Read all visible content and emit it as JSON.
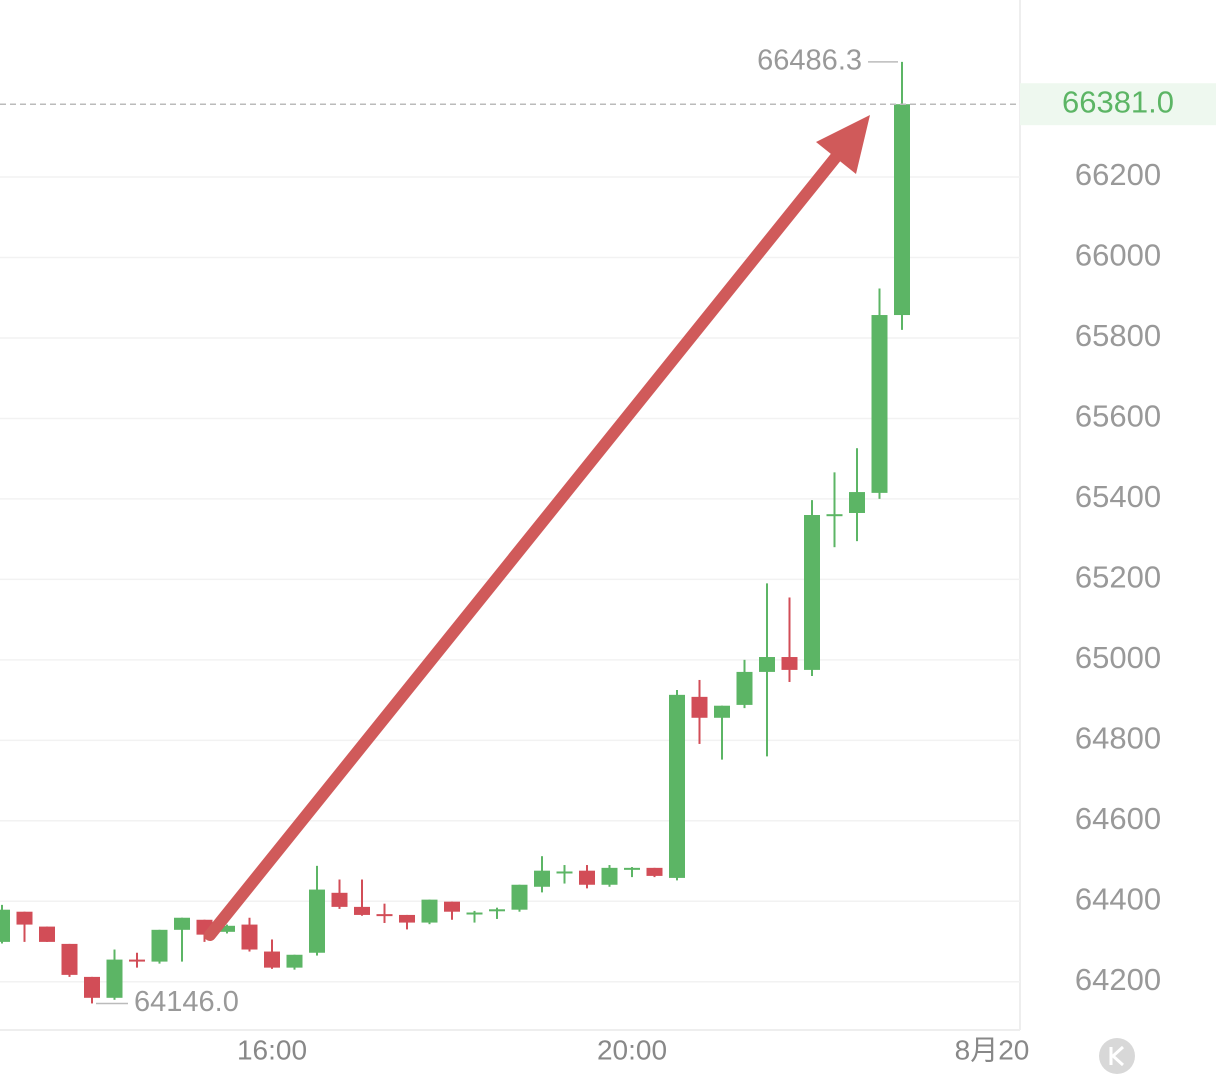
{
  "chart_data": {
    "type": "candlestick",
    "categories": [
      null,
      null,
      null,
      null,
      null,
      null,
      null,
      null,
      null,
      null,
      null,
      null,
      "16:00",
      null,
      null,
      null,
      null,
      null,
      null,
      null,
      null,
      null,
      null,
      null,
      null,
      null,
      null,
      null,
      "20:00",
      null,
      null,
      null,
      null,
      null,
      null,
      null,
      null,
      null,
      null,
      null,
      null,
      null,
      null,
      null,
      "8月20"
    ],
    "open": [
      64299,
      64374,
      64337,
      64294,
      64212,
      64160,
      64255,
      64250,
      64329,
      64354,
      64324,
      64342,
      64275,
      64235,
      64272,
      64421,
      64386,
      64368,
      64366,
      64347,
      64399,
      64372,
      64378,
      64379,
      64436,
      64472,
      64476,
      64441,
      64483,
      64483,
      64458,
      64908,
      64856,
      64888,
      64970,
      65007,
      64975,
      65362,
      65365,
      65415,
      65857,
      null,
      null,
      null,
      null
    ],
    "high": [
      64391,
      64374,
      64337,
      64294,
      64212,
      64280,
      64272,
      64329,
      64359,
      64354,
      64342,
      64359,
      64305,
      64267,
      64488,
      64454,
      64454,
      64394,
      64366,
      64404,
      64399,
      64376,
      64384,
      64441,
      64512,
      64490,
      64490,
      64490,
      64485,
      64483,
      64925,
      64950,
      64886,
      65000,
      65190,
      65155,
      65397,
      65466,
      65526,
      65923,
      66486.3,
      null,
      null,
      null,
      null
    ],
    "low": [
      64295,
      64299,
      64299,
      64212,
      64146,
      64155,
      64235,
      64245,
      64250,
      64299,
      64320,
      64275,
      64232,
      64230,
      64265,
      64381,
      64364,
      64346,
      64330,
      64343,
      64354,
      64347,
      64356,
      64374,
      64422,
      64444,
      64432,
      64436,
      64460,
      64460,
      64452,
      64791,
      64752,
      64880,
      64760,
      64945,
      64960,
      65280,
      65295,
      65400,
      65820,
      null,
      null,
      null,
      null
    ],
    "close": [
      64379,
      64342,
      64299,
      64217,
      64160,
      64255,
      64252,
      64329,
      64359,
      64317,
      64339,
      64280,
      64235,
      64267,
      64429,
      64386,
      64366,
      64366,
      64347,
      64404,
      64374,
      64372,
      64380,
      64441,
      64476,
      64474,
      64441,
      64483,
      64483,
      64463,
      64913,
      64856,
      64886,
      64970,
      65007,
      64975,
      65360,
      65362,
      65417,
      65857,
      66381,
      null,
      null,
      null,
      null
    ],
    "up_color": "#5cb565",
    "down_color": "#d24d57",
    "ylim": [
      64080,
      66640
    ],
    "yticks": [
      64200,
      64400,
      64600,
      64800,
      65000,
      65200,
      65400,
      65600,
      65800,
      66000,
      66200
    ],
    "grid": true,
    "high_label": 66486.3,
    "low_label": {
      "value": 64146,
      "label": "64146.0"
    },
    "last_price": {
      "value": 66381,
      "label": "66381.0"
    }
  }
}
